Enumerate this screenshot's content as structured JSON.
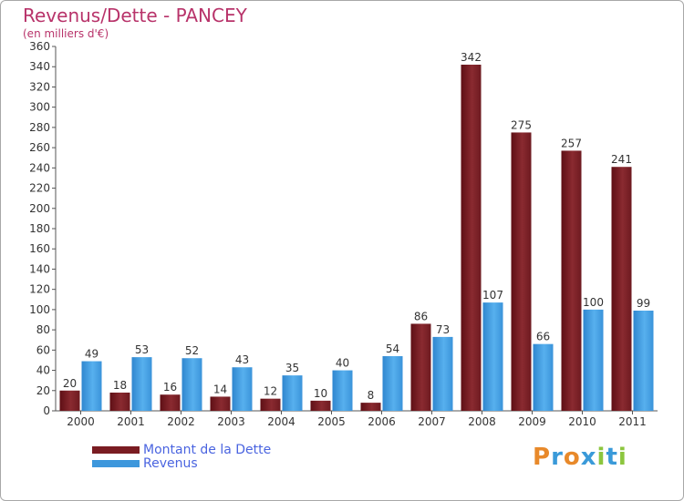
{
  "title": "Revenus/Dette - PANCEY",
  "subtitle": "(en milliers d'€)",
  "colors": {
    "debt": "#7a1c22",
    "revenue": "#3d97dc",
    "title": "#b8336a",
    "legend_text": "#4a64e0"
  },
  "legend": {
    "debt_label": "Montant de la Dette",
    "revenue_label": "Revenus"
  },
  "logo": {
    "text": "Proxiti",
    "letter_colors": [
      "#e8892a",
      "#3a9ad9",
      "#e8892a",
      "#3a9ad9",
      "#8cc63e",
      "#3a9ad9",
      "#8cc63e"
    ]
  },
  "chart_data": {
    "type": "bar",
    "title": "Revenus/Dette - PANCEY",
    "subtitle": "(en milliers d'€)",
    "xlabel": "",
    "ylabel": "",
    "ylim": [
      0,
      360
    ],
    "ytick_step": 20,
    "grid": false,
    "legend_position": "bottom-left",
    "categories": [
      "2000",
      "2001",
      "2002",
      "2003",
      "2004",
      "2005",
      "2006",
      "2007",
      "2008",
      "2009",
      "2010",
      "2011"
    ],
    "series": [
      {
        "name": "Montant de la Dette",
        "values": [
          20,
          18,
          16,
          14,
          12,
          10,
          8,
          86,
          342,
          275,
          257,
          241
        ]
      },
      {
        "name": "Revenus",
        "values": [
          49,
          53,
          52,
          43,
          35,
          40,
          54,
          73,
          107,
          66,
          100,
          99
        ]
      }
    ]
  }
}
